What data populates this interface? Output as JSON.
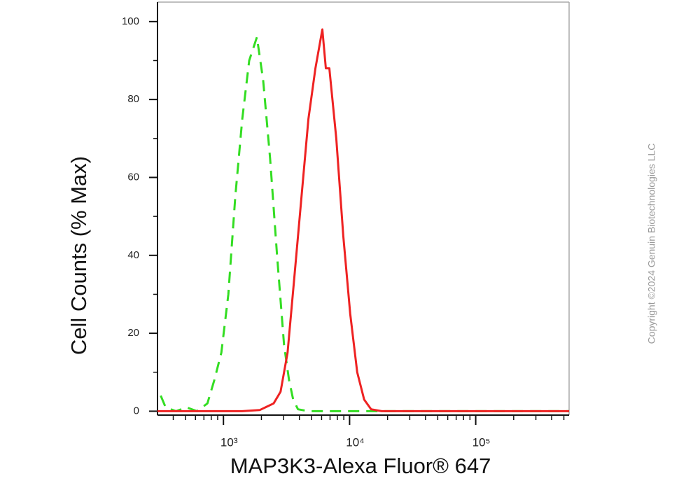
{
  "chart_data": {
    "type": "line",
    "xlabel": "MAP3K3-Alexa Fluor® 647",
    "ylabel": "Cell Counts (% Max)",
    "annotation": "Copyright ©2024 Genuin Biotechnologies LLC",
    "xscale": "log",
    "xlim": [
      300,
      550000
    ],
    "ylim": [
      -1,
      105
    ],
    "xticks": [
      {
        "value": 1000,
        "label": "10³"
      },
      {
        "value": 10000,
        "label": "10⁴"
      },
      {
        "value": 100000,
        "label": "10⁵"
      }
    ],
    "xminor_ticks": [
      400,
      500,
      600,
      700,
      800,
      900,
      2000,
      3000,
      4000,
      5000,
      6000,
      7000,
      8000,
      9000,
      20000,
      30000,
      40000,
      50000,
      60000,
      70000,
      80000,
      90000,
      200000,
      300000,
      400000,
      500000
    ],
    "yticks": [
      0,
      20,
      40,
      60,
      80,
      100
    ],
    "yminor_ticks": [
      10,
      30,
      50,
      70,
      90
    ],
    "series": [
      {
        "color": "#33dd22",
        "dash": true,
        "x": [
          318,
          348,
          421,
          509,
          617,
          746,
          847,
          962,
          1093,
          1241,
          1410,
          1601,
          1842,
          2064,
          2343,
          2662,
          3024,
          3309,
          3570,
          3898,
          4718,
          36100,
          550000
        ],
        "values": [
          4,
          1,
          0,
          1,
          0,
          2,
          8,
          15,
          30,
          55,
          75,
          90,
          96,
          85,
          65,
          40,
          17,
          8,
          3,
          0.5,
          0,
          0,
          0
        ]
      },
      {
        "color": "#ee2222",
        "dash": false,
        "x": [
          300,
          1410,
          1938,
          2499,
          2838,
          3223,
          3660,
          4156,
          4718,
          5358,
          6085,
          6484,
          6910,
          7847,
          8910,
          10118,
          11489,
          13047,
          14815,
          17985,
          550000
        ],
        "values": [
          0,
          0,
          0.3,
          2,
          5,
          15,
          35,
          55,
          75,
          88,
          98,
          88,
          88,
          70,
          45,
          25,
          10,
          3,
          0.5,
          0,
          0
        ]
      }
    ]
  }
}
